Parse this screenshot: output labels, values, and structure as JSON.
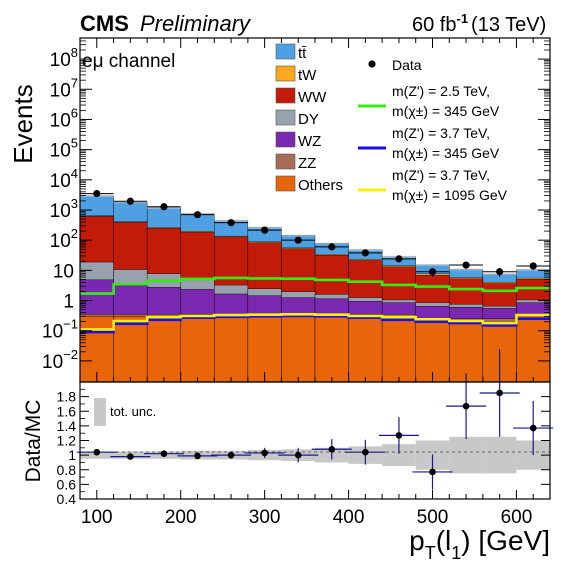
{
  "header": {
    "experiment": "CMS",
    "status": "Preliminary",
    "lumi": "60 fb",
    "lumi_exp": "-1",
    "energy": "(13 TeV)"
  },
  "chart_data": [
    {
      "type": "stacked-histogram",
      "channel": "eμ channel",
      "ylabel": "Events",
      "yscale": "log",
      "ylim": [
        0.002,
        500000000
      ],
      "xlim": [
        80,
        640
      ],
      "bin_edges": [
        80,
        120,
        160,
        200,
        240,
        280,
        320,
        360,
        400,
        440,
        480,
        520,
        560,
        600,
        640
      ],
      "yticks": [
        {
          "value": 0.01,
          "label": "10",
          "exp": "−2"
        },
        {
          "value": 0.1,
          "label": "10",
          "exp": "−1"
        },
        {
          "value": 1,
          "label": "1",
          "exp": ""
        },
        {
          "value": 10,
          "label": "10",
          "exp": ""
        },
        {
          "value": 100,
          "label": "10",
          "exp": "2"
        },
        {
          "value": 1000,
          "label": "10",
          "exp": "3"
        },
        {
          "value": 10000,
          "label": "10",
          "exp": "4"
        },
        {
          "value": 100000,
          "label": "10",
          "exp": "5"
        },
        {
          "value": 1000000,
          "label": "10",
          "exp": "6"
        },
        {
          "value": 10000000,
          "label": "10",
          "exp": "7"
        },
        {
          "value": 100000000,
          "label": "10",
          "exp": "8"
        }
      ],
      "stack": [
        {
          "name": "Others",
          "color": "#e8650a",
          "values": [
            0.3,
            0.3,
            0.3,
            0.3,
            0.3,
            0.3,
            0.3,
            0.3,
            0.3,
            0.3,
            0.2,
            0.2,
            0.2,
            0.3
          ]
        },
        {
          "name": "ZZ",
          "color": "#a86b5a",
          "values": [
            0.05,
            0.05,
            0.05,
            0.05,
            0.05,
            0.05,
            0.05,
            0.05,
            0.05,
            0.05,
            0.05,
            0.05,
            0.05,
            0.05
          ]
        },
        {
          "name": "WZ",
          "color": "#7b28b0",
          "values": [
            4.5,
            3.3,
            2.4,
            2.0,
            1.3,
            1.1,
            0.9,
            0.8,
            0.6,
            0.5,
            0.4,
            0.35,
            0.3,
            0.5
          ]
        },
        {
          "name": "DY",
          "color": "#98a2ae",
          "values": [
            14,
            7,
            5,
            2.5,
            1.6,
            1.0,
            0.7,
            0.45,
            0.3,
            0.2,
            0.2,
            0.15,
            0.1,
            0.2
          ]
        },
        {
          "name": "WW",
          "color": "#c21c08",
          "values": [
            600,
            380,
            240,
            180,
            125,
            80,
            50,
            30,
            20,
            12,
            6,
            4.5,
            3,
            4
          ]
        },
        {
          "name": "tW",
          "color": "#fba81e",
          "values": [
            25,
            20,
            15,
            11,
            8,
            5.5,
            3.7,
            2.5,
            1.7,
            1.2,
            0.8,
            0.5,
            0.4,
            0.5
          ]
        },
        {
          "name": "tt̄",
          "color": "#4ea0e3",
          "values": [
            2300,
            1400,
            920,
            550,
            310,
            175,
            90,
            45,
            25,
            14,
            7.5,
            5,
            3.5,
            5
          ]
        }
      ],
      "signals": [
        {
          "name_line1": "m(Z') = 2.5 TeV,",
          "name_line2": "m(χ±) = 345 GeV",
          "color": "#33ee10",
          "values": [
            1.7,
            3.5,
            4.5,
            5.2,
            5.6,
            5.4,
            5.3,
            4.8,
            4.2,
            3.3,
            2.9,
            2.4,
            2.1,
            2.6
          ]
        },
        {
          "name_line1": "m(Z') = 3.7 TeV,",
          "name_line2": "m(χ±) = 345 GeV",
          "color": "#1d0ee8",
          "values": [
            0.09,
            0.17,
            0.23,
            0.27,
            0.29,
            0.3,
            0.31,
            0.3,
            0.27,
            0.23,
            0.2,
            0.18,
            0.15,
            0.25
          ]
        },
        {
          "name_line1": "m(Z') = 3.7 TeV,",
          "name_line2": "m(χ±) = 1095 GeV",
          "color": "#f5f10a",
          "values": [
            0.11,
            0.21,
            0.28,
            0.31,
            0.33,
            0.34,
            0.35,
            0.34,
            0.31,
            0.28,
            0.24,
            0.21,
            0.18,
            0.33
          ]
        }
      ],
      "data": {
        "name": "Data",
        "x": [
          100,
          140,
          180,
          220,
          260,
          300,
          340,
          380,
          420,
          460,
          500,
          540,
          580,
          620
        ],
        "values": [
          3500,
          1950,
          1280,
          700,
          380,
          215,
          100,
          60,
          38,
          24,
          9,
          15,
          9,
          14
        ]
      }
    },
    {
      "type": "ratio",
      "ylabel": "Data/MC",
      "xlabel": "p",
      "xlabel_sub": "T",
      "xlabel_arg": "(l",
      "xlabel_arg_sub": "1",
      "xlabel_unit": ") [GeV]",
      "ylim": [
        0.4,
        2.0
      ],
      "yticks": [
        "0.4",
        "0.6",
        "0.8",
        "1",
        "1.2",
        "1.4",
        "1.6",
        "1.8"
      ],
      "xticks": [
        "100",
        "200",
        "300",
        "400",
        "500",
        "600"
      ],
      "band_label": "tot. unc.",
      "unc": [
        0.05,
        0.05,
        0.05,
        0.06,
        0.06,
        0.07,
        0.08,
        0.1,
        0.12,
        0.15,
        0.2,
        0.25,
        0.25,
        0.2
      ],
      "points": [
        {
          "x": 100,
          "y": 1.04,
          "err": 0.03
        },
        {
          "x": 140,
          "y": 0.98,
          "err": 0.03
        },
        {
          "x": 180,
          "y": 1.02,
          "err": 0.03
        },
        {
          "x": 220,
          "y": 0.99,
          "err": 0.04
        },
        {
          "x": 260,
          "y": 1.0,
          "err": 0.05
        },
        {
          "x": 300,
          "y": 1.03,
          "err": 0.07
        },
        {
          "x": 340,
          "y": 1.0,
          "err": 0.1
        },
        {
          "x": 380,
          "y": 1.08,
          "err": 0.14
        },
        {
          "x": 420,
          "y": 1.04,
          "err": 0.17
        },
        {
          "x": 460,
          "y": 1.27,
          "err": 0.25
        },
        {
          "x": 500,
          "y": 0.77,
          "err": 0.24
        },
        {
          "x": 540,
          "y": 1.67,
          "err": 0.45
        },
        {
          "x": 580,
          "y": 1.85,
          "err": 0.6
        },
        {
          "x": 620,
          "y": 1.37,
          "err": 0.37
        }
      ]
    }
  ]
}
